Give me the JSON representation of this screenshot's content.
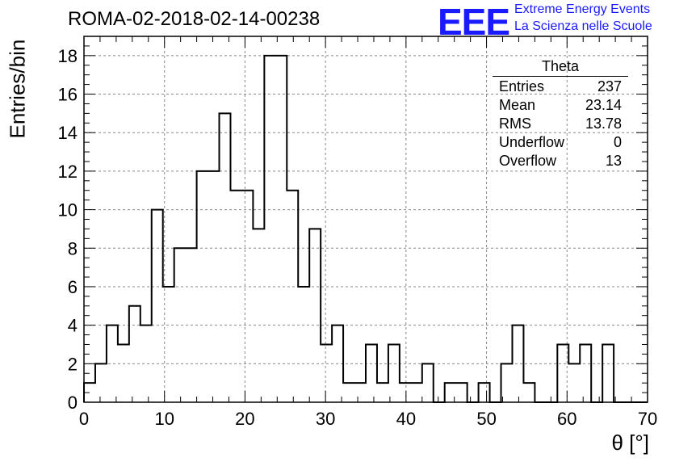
{
  "header": {
    "title": "ROMA-02-2018-02-14-00238",
    "logo_text": "EEE",
    "logo_line1": "Extreme Energy Events",
    "logo_line2": "La Scienza nelle Scuole"
  },
  "stats": {
    "title": "Theta",
    "rows": [
      {
        "label": "Entries",
        "value": "237"
      },
      {
        "label": "Mean",
        "value": "23.14"
      },
      {
        "label": "RMS",
        "value": "13.78"
      },
      {
        "label": "Underflow",
        "value": "0"
      },
      {
        "label": "Overflow",
        "value": "13"
      }
    ]
  },
  "colors": {
    "line": "#000000",
    "grid": "#888888",
    "logo": "#1a1aff"
  },
  "chart_data": {
    "type": "histogram",
    "title": "ROMA-02-2018-02-14-00238",
    "xlabel": "θ [°]",
    "ylabel": "Entries/bin",
    "xlim": [
      0,
      70
    ],
    "ylim": [
      0,
      19
    ],
    "bin_width": 1.4,
    "bin_start": 0,
    "xticks": [
      0,
      10,
      20,
      30,
      40,
      50,
      60,
      70
    ],
    "yticks": [
      0,
      2,
      4,
      6,
      8,
      10,
      12,
      14,
      16,
      18
    ],
    "grid": true,
    "values": [
      1,
      2,
      4,
      3,
      5,
      4,
      10,
      6,
      8,
      8,
      12,
      12,
      15,
      11,
      11,
      9,
      18,
      18,
      11,
      6,
      9,
      3,
      4,
      1,
      1,
      3,
      1,
      3,
      1,
      1,
      2,
      0,
      1,
      1,
      0,
      1,
      0,
      2,
      4,
      1,
      0,
      0,
      3,
      2,
      3,
      0,
      3,
      0,
      0,
      0
    ]
  }
}
